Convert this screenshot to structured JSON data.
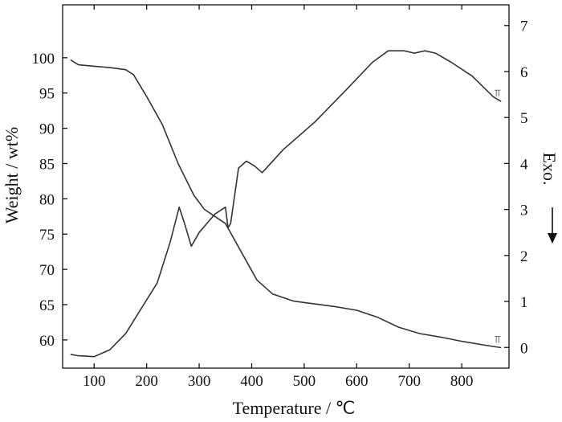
{
  "chart_data": {
    "type": "line",
    "xlabel": "Temperature / ℃",
    "ylabel_left": "Weight / wt%",
    "ylabel_right": "Exo.",
    "xlim": [
      40,
      890
    ],
    "ylim_left": [
      56,
      107.5
    ],
    "ylim_right": [
      -0.45,
      7.45
    ],
    "x_ticks": [
      100,
      200,
      300,
      400,
      500,
      600,
      700,
      800
    ],
    "y_left_ticks": [
      60,
      65,
      70,
      75,
      80,
      85,
      90,
      95,
      100
    ],
    "y_right_ticks": [
      0,
      1,
      2,
      3,
      4,
      5,
      6,
      7
    ],
    "grid": false,
    "series": [
      {
        "axis": "left",
        "x": [
          55,
          70,
          100,
          130,
          160,
          175,
          200,
          230,
          260,
          290,
          310,
          330,
          350,
          380,
          410,
          440,
          480,
          520,
          560,
          600,
          640,
          680,
          720,
          760,
          800,
          840,
          875
        ],
        "y": [
          99.7,
          99.0,
          98.8,
          98.6,
          98.3,
          97.6,
          94.5,
          90.5,
          85.0,
          80.5,
          78.5,
          77.5,
          76.5,
          72.5,
          68.5,
          66.5,
          65.5,
          65.1,
          64.7,
          64.2,
          63.2,
          61.8,
          60.9,
          60.4,
          59.8,
          59.3,
          58.9
        ]
      },
      {
        "axis": "right",
        "x": [
          55,
          70,
          100,
          130,
          160,
          190,
          220,
          245,
          262,
          272,
          285,
          300,
          330,
          350,
          355,
          360,
          375,
          390,
          405,
          420,
          460,
          520,
          580,
          630,
          660,
          690,
          710,
          730,
          750,
          780,
          820,
          860,
          875
        ],
        "y": [
          -0.15,
          -0.18,
          -0.2,
          -0.05,
          0.3,
          0.85,
          1.4,
          2.3,
          3.05,
          2.7,
          2.2,
          2.5,
          2.9,
          3.05,
          2.6,
          2.7,
          3.9,
          4.05,
          3.95,
          3.8,
          4.3,
          4.9,
          5.6,
          6.2,
          6.45,
          6.45,
          6.4,
          6.45,
          6.4,
          6.2,
          5.9,
          5.45,
          5.35
        ]
      }
    ]
  }
}
